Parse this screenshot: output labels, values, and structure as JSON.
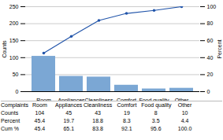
{
  "chart_data": {
    "type": "bar",
    "categories": [
      "Room",
      "Appliances",
      "Cleanliness",
      "Comfort",
      "Food quality",
      "Other"
    ],
    "series": [
      {
        "type": "bar",
        "color": "#7ba7d4",
        "values": [
          104,
          45,
          43,
          19,
          8,
          10
        ]
      },
      {
        "type": "line",
        "axis": "y2",
        "color": "#2255aa",
        "marker": "o",
        "values": [
          45.4,
          65.1,
          83.8,
          92.1,
          95.6,
          100.0
        ]
      }
    ],
    "ylabel": "Counts",
    "y2label": "Percent",
    "ylim": [
      0,
      250
    ],
    "yticks": [
      0,
      50,
      100,
      150,
      200,
      250
    ],
    "y2lim": [
      0,
      100
    ],
    "y2ticks": [
      0,
      20,
      40,
      60,
      80,
      100
    ],
    "grid": true,
    "table": [
      {
        "name": "Complaints",
        "values": [
          "Room",
          "Appliances",
          "Cleanliness",
          "Comfort",
          "Food quality",
          "Other"
        ]
      },
      {
        "name": "Counts",
        "values": [
          "104",
          "45",
          "43",
          "19",
          "8",
          "10"
        ]
      },
      {
        "name": "Percent",
        "values": [
          "45.4",
          "19.7",
          "18.8",
          "8.3",
          "3.5",
          "4.4"
        ]
      },
      {
        "name": "Cum %",
        "values": [
          "45.4",
          "65.1",
          "83.8",
          "92.1",
          "95.6",
          "100.0"
        ]
      }
    ]
  }
}
